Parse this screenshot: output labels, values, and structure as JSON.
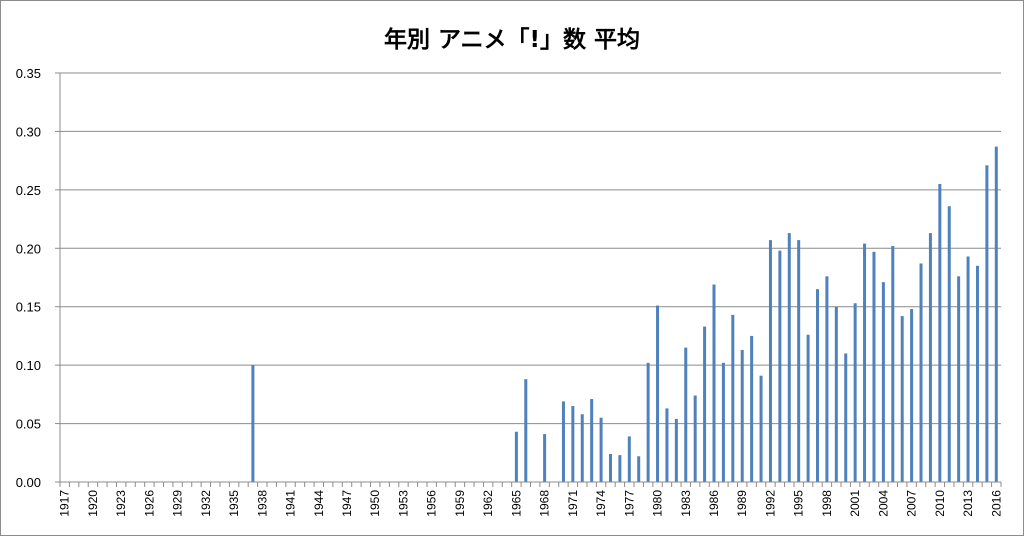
{
  "chart_data": {
    "type": "bar",
    "title": "年別 アニメ「!」数 平均",
    "xlabel": "",
    "ylabel": "",
    "ylim": [
      0,
      0.35
    ],
    "y_ticks": [
      "0.00",
      "0.05",
      "0.10",
      "0.15",
      "0.20",
      "0.25",
      "0.30",
      "0.35"
    ],
    "grid": true,
    "bar_color": "#4f81bd",
    "x_tick_labels": [
      "1917",
      "1920",
      "1923",
      "1926",
      "1929",
      "1932",
      "1935",
      "1938",
      "1941",
      "1944",
      "1947",
      "1950",
      "1953",
      "1956",
      "1959",
      "1962",
      "1965",
      "1968",
      "1971",
      "1974",
      "1977",
      "1980",
      "1983",
      "1986",
      "1989",
      "1992",
      "1995",
      "1998",
      "2001",
      "2004",
      "2007",
      "2010",
      "2013",
      "2016"
    ],
    "x": [
      1917,
      1918,
      1919,
      1920,
      1921,
      1922,
      1923,
      1924,
      1925,
      1926,
      1927,
      1928,
      1929,
      1930,
      1931,
      1932,
      1933,
      1934,
      1935,
      1936,
      1937,
      1938,
      1939,
      1940,
      1941,
      1942,
      1943,
      1944,
      1945,
      1946,
      1947,
      1948,
      1949,
      1950,
      1951,
      1952,
      1953,
      1954,
      1955,
      1956,
      1957,
      1958,
      1959,
      1960,
      1961,
      1962,
      1963,
      1964,
      1965,
      1966,
      1967,
      1968,
      1969,
      1970,
      1971,
      1972,
      1973,
      1974,
      1975,
      1976,
      1977,
      1978,
      1979,
      1980,
      1981,
      1982,
      1983,
      1984,
      1985,
      1986,
      1987,
      1988,
      1989,
      1990,
      1991,
      1992,
      1993,
      1994,
      1995,
      1996,
      1997,
      1998,
      1999,
      2000,
      2001,
      2002,
      2003,
      2004,
      2005,
      2006,
      2007,
      2008,
      2009,
      2010,
      2011,
      2012,
      2013,
      2014,
      2015,
      2016
    ],
    "values": [
      0,
      0,
      0,
      0,
      0,
      0,
      0,
      0,
      0,
      0,
      0,
      0,
      0,
      0,
      0,
      0,
      0,
      0,
      0,
      0,
      0.1,
      0,
      0,
      0,
      0,
      0,
      0,
      0,
      0,
      0,
      0,
      0,
      0,
      0,
      0,
      0,
      0,
      0,
      0,
      0,
      0,
      0,
      0,
      0,
      0,
      0,
      0,
      0,
      0.043,
      0.088,
      0,
      0.041,
      0,
      0.069,
      0.065,
      0.058,
      0.071,
      0.055,
      0.024,
      0.023,
      0.039,
      0.022,
      0.102,
      0.151,
      0.063,
      0.054,
      0.115,
      0.074,
      0.133,
      0.169,
      0.102,
      0.143,
      0.113,
      0.125,
      0.091,
      0.207,
      0.198,
      0.213,
      0.207,
      0.126,
      0.165,
      0.176,
      0.15,
      0.11,
      0.153,
      0.204,
      0.197,
      0.171,
      0.202,
      0.142,
      0.148,
      0.187,
      0.213,
      0.255,
      0.236,
      0.176,
      0.193,
      0.185,
      0.271,
      0.287
    ]
  }
}
